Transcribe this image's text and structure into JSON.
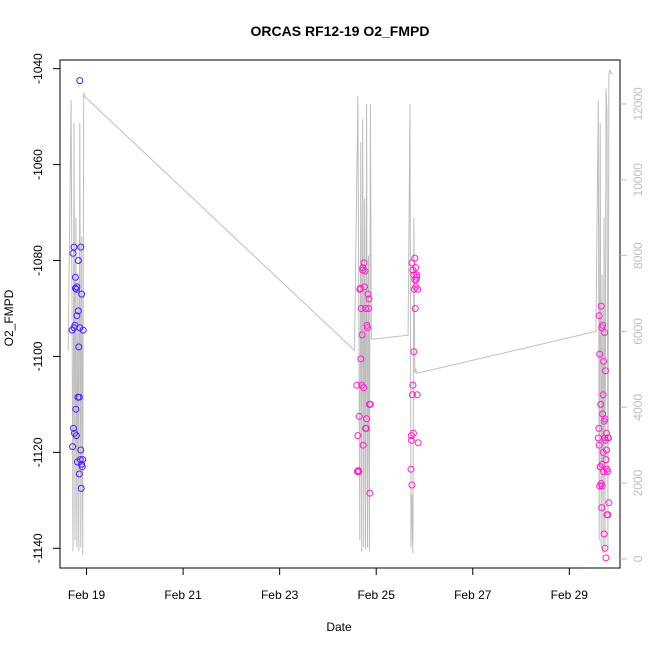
{
  "chart_data": {
    "type": "scatter",
    "title": "ORCAS RF12-19 O2_FMPD",
    "xlabel": "Date",
    "ylabel": "O2_FMPD",
    "x_tick_labels": [
      "Feb 19",
      "Feb 21",
      "Feb 23",
      "Feb 25",
      "Feb 27",
      "Feb 29"
    ],
    "x_tick_values": [
      19,
      21,
      23,
      25,
      27,
      29
    ],
    "xlim": [
      18.45,
      30.05
    ],
    "ylim": [
      -1144.1,
      -1038.2
    ],
    "y_ticks": [
      -1140,
      -1120,
      -1100,
      -1080,
      -1060,
      -1040
    ],
    "y2_ticks": [
      0,
      2000,
      4000,
      6000,
      8000,
      10000,
      12000
    ],
    "y2lim": [
      -240,
      13160
    ],
    "colors": {
      "axis": "#000000",
      "secondary": "#bebebe",
      "early_points": "#4b1eff",
      "late_points": "#ff1ecc"
    },
    "series": [
      {
        "values_x": [
          18.7,
          18.72,
          18.74,
          18.77,
          18.8,
          18.83,
          18.86,
          18.88,
          18.9,
          18.93,
          18.73,
          18.79,
          18.84,
          18.76,
          18.82,
          18.87,
          18.91,
          18.71,
          18.78,
          18.85,
          18.92,
          18.75,
          18.81,
          18.89,
          18.74,
          18.8,
          18.86,
          18.77,
          18.83,
          18.88,
          18.9,
          18.79,
          18.85
        ],
        "values_y": [
          -1094.5,
          -1078.5,
          -1077.2,
          -1083.5,
          -1085.5,
          -1080,
          -1042.5,
          -1077.2,
          -1087,
          -1094.5,
          -1115,
          -1086,
          -1098,
          -1093.5,
          -1108.5,
          -1121.5,
          -1123,
          -1118.8,
          -1111,
          -1124.5,
          -1121.5,
          -1116,
          -1122,
          -1127.5,
          -1094,
          -1091.5,
          -1094,
          -1085.8,
          -1090.5,
          -1119.5,
          -1122.5,
          -1116.5,
          -1108.5
        ]
      },
      {
        "values_x": [
          24.6,
          24.63,
          24.66,
          24.69,
          24.72,
          24.75,
          24.78,
          24.81,
          24.84,
          24.87,
          24.62,
          24.68,
          24.74,
          24.8,
          24.86,
          24.65,
          24.71,
          24.77,
          24.83,
          24.64,
          24.7,
          24.76,
          24.82,
          24.67,
          24.73,
          24.79,
          24.85,
          24.61,
          24.72,
          24.78,
          24.88
        ],
        "values_y": [
          -1106,
          -1123.8,
          -1086,
          -1090,
          -1081.5,
          -1080.5,
          -1090,
          -1093.5,
          -1090,
          -1128.5,
          -1116.5,
          -1100.5,
          -1106.5,
          -1113,
          -1110,
          -1112.5,
          -1095.5,
          -1082.2,
          -1087,
          -1124,
          -1106,
          -1085.5,
          -1094,
          -1085.8,
          -1118.5,
          -1115,
          -1088,
          -1124,
          -1082,
          -1115,
          -1110
        ]
      },
      {
        "values_x": [
          25.72,
          25.74,
          25.76,
          25.78,
          25.8,
          25.82,
          25.84,
          25.86,
          25.73,
          25.77,
          25.81,
          25.85,
          25.75,
          25.79,
          25.83,
          25.74,
          25.78,
          25.82,
          25.76,
          25.8,
          25.84,
          25.73,
          25.87
        ],
        "values_y": [
          -1123.5,
          -1126.8,
          -1106,
          -1099,
          -1079.5,
          -1081.5,
          -1083,
          -1086,
          -1117.5,
          -1116,
          -1090,
          -1108,
          -1108,
          -1086,
          -1084,
          -1080.5,
          -1083,
          -1085.5,
          -1082,
          -1084,
          -1083.5,
          -1116.5,
          -1118
        ]
      },
      {
        "values_x": [
          29.6,
          29.62,
          29.64,
          29.66,
          29.68,
          29.7,
          29.72,
          29.74,
          29.76,
          29.78,
          29.8,
          29.82,
          29.61,
          29.65,
          29.69,
          29.73,
          29.77,
          29.81,
          29.63,
          29.67,
          29.71,
          29.75,
          29.79,
          29.62,
          29.66,
          29.7,
          29.74,
          29.78,
          29.64,
          29.68,
          29.72,
          29.76,
          29.8,
          29.63,
          29.67,
          29.71,
          29.75,
          29.69,
          29.73,
          29.77
        ],
        "values_y": [
          -1117,
          -1118.5,
          -1123,
          -1126.5,
          -1127,
          -1120,
          -1137,
          -1140,
          -1142,
          -1133,
          -1133,
          -1130.5,
          -1115,
          -1110,
          -1112,
          -1117,
          -1116,
          -1117,
          -1099.5,
          -1094,
          -1101,
          -1103,
          -1124,
          -1091.5,
          -1089.5,
          -1108,
          -1113,
          -1123.5,
          -1123,
          -1122.5,
          -1113.5,
          -1121.5,
          -1117,
          -1127,
          -1131.5,
          -1124,
          -1117.5,
          -1093.5,
          -1095,
          -1119.5
        ]
      }
    ],
    "secondary_series_x": [
      18.62,
      18.68,
      18.7,
      18.72,
      18.74,
      18.76,
      18.78,
      18.8,
      18.82,
      18.84,
      18.86,
      18.88,
      18.9,
      18.92,
      18.94,
      18.96,
      24.55,
      24.62,
      24.66,
      24.68,
      24.7,
      24.72,
      24.74,
      24.76,
      24.78,
      24.8,
      24.82,
      24.84,
      24.86,
      24.88,
      24.9,
      24.92,
      24.96,
      25.66,
      25.7,
      25.72,
      25.74,
      25.76,
      25.78,
      25.8,
      25.82,
      25.84,
      25.86,
      29.55,
      29.6,
      29.62,
      29.64,
      29.66,
      29.68,
      29.7,
      29.72,
      29.74,
      29.76,
      29.78,
      29.8,
      29.82,
      29.84,
      29.86,
      29.88,
      29.9
    ],
    "secondary_series_y": [
      5500,
      12100,
      6000,
      200,
      11500,
      500,
      9000,
      300,
      7500,
      200,
      11500,
      300,
      8500,
      100,
      12300,
      12200,
      5500,
      12200,
      500,
      11000,
      200,
      11600,
      300,
      9500,
      250,
      12000,
      300,
      8000,
      200,
      12000,
      5800,
      5800,
      5800,
      5900,
      12000,
      300,
      1700,
      150,
      9000,
      4900,
      5000,
      4900,
      4900,
      6000,
      12100,
      500,
      11500,
      300,
      7500,
      150,
      9000,
      200,
      12400,
      11800,
      300,
      12800,
      12900,
      12800,
      12800,
      12800
    ]
  }
}
